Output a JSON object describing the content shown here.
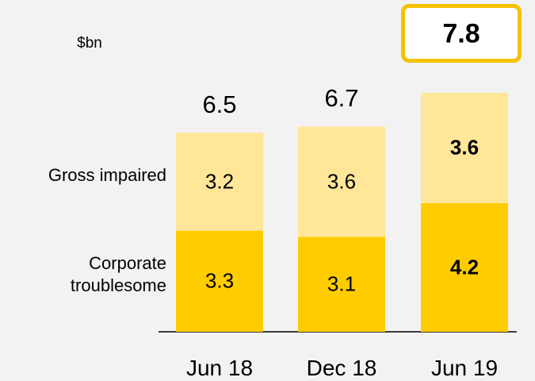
{
  "chart_data": {
    "type": "stacked_bar",
    "unit": "$bn",
    "categories": [
      "Jun 18",
      "Dec 18",
      "Jun 19"
    ],
    "series": [
      {
        "name": "Corporate troublesome",
        "color": "#ffcc00",
        "values": [
          3.3,
          3.1,
          4.2
        ]
      },
      {
        "name": "Gross impaired",
        "color": "#ffe699",
        "values": [
          3.2,
          3.6,
          3.6
        ]
      }
    ],
    "totals": [
      6.5,
      6.7,
      7.8
    ],
    "highlight": "Jun 19"
  }
}
